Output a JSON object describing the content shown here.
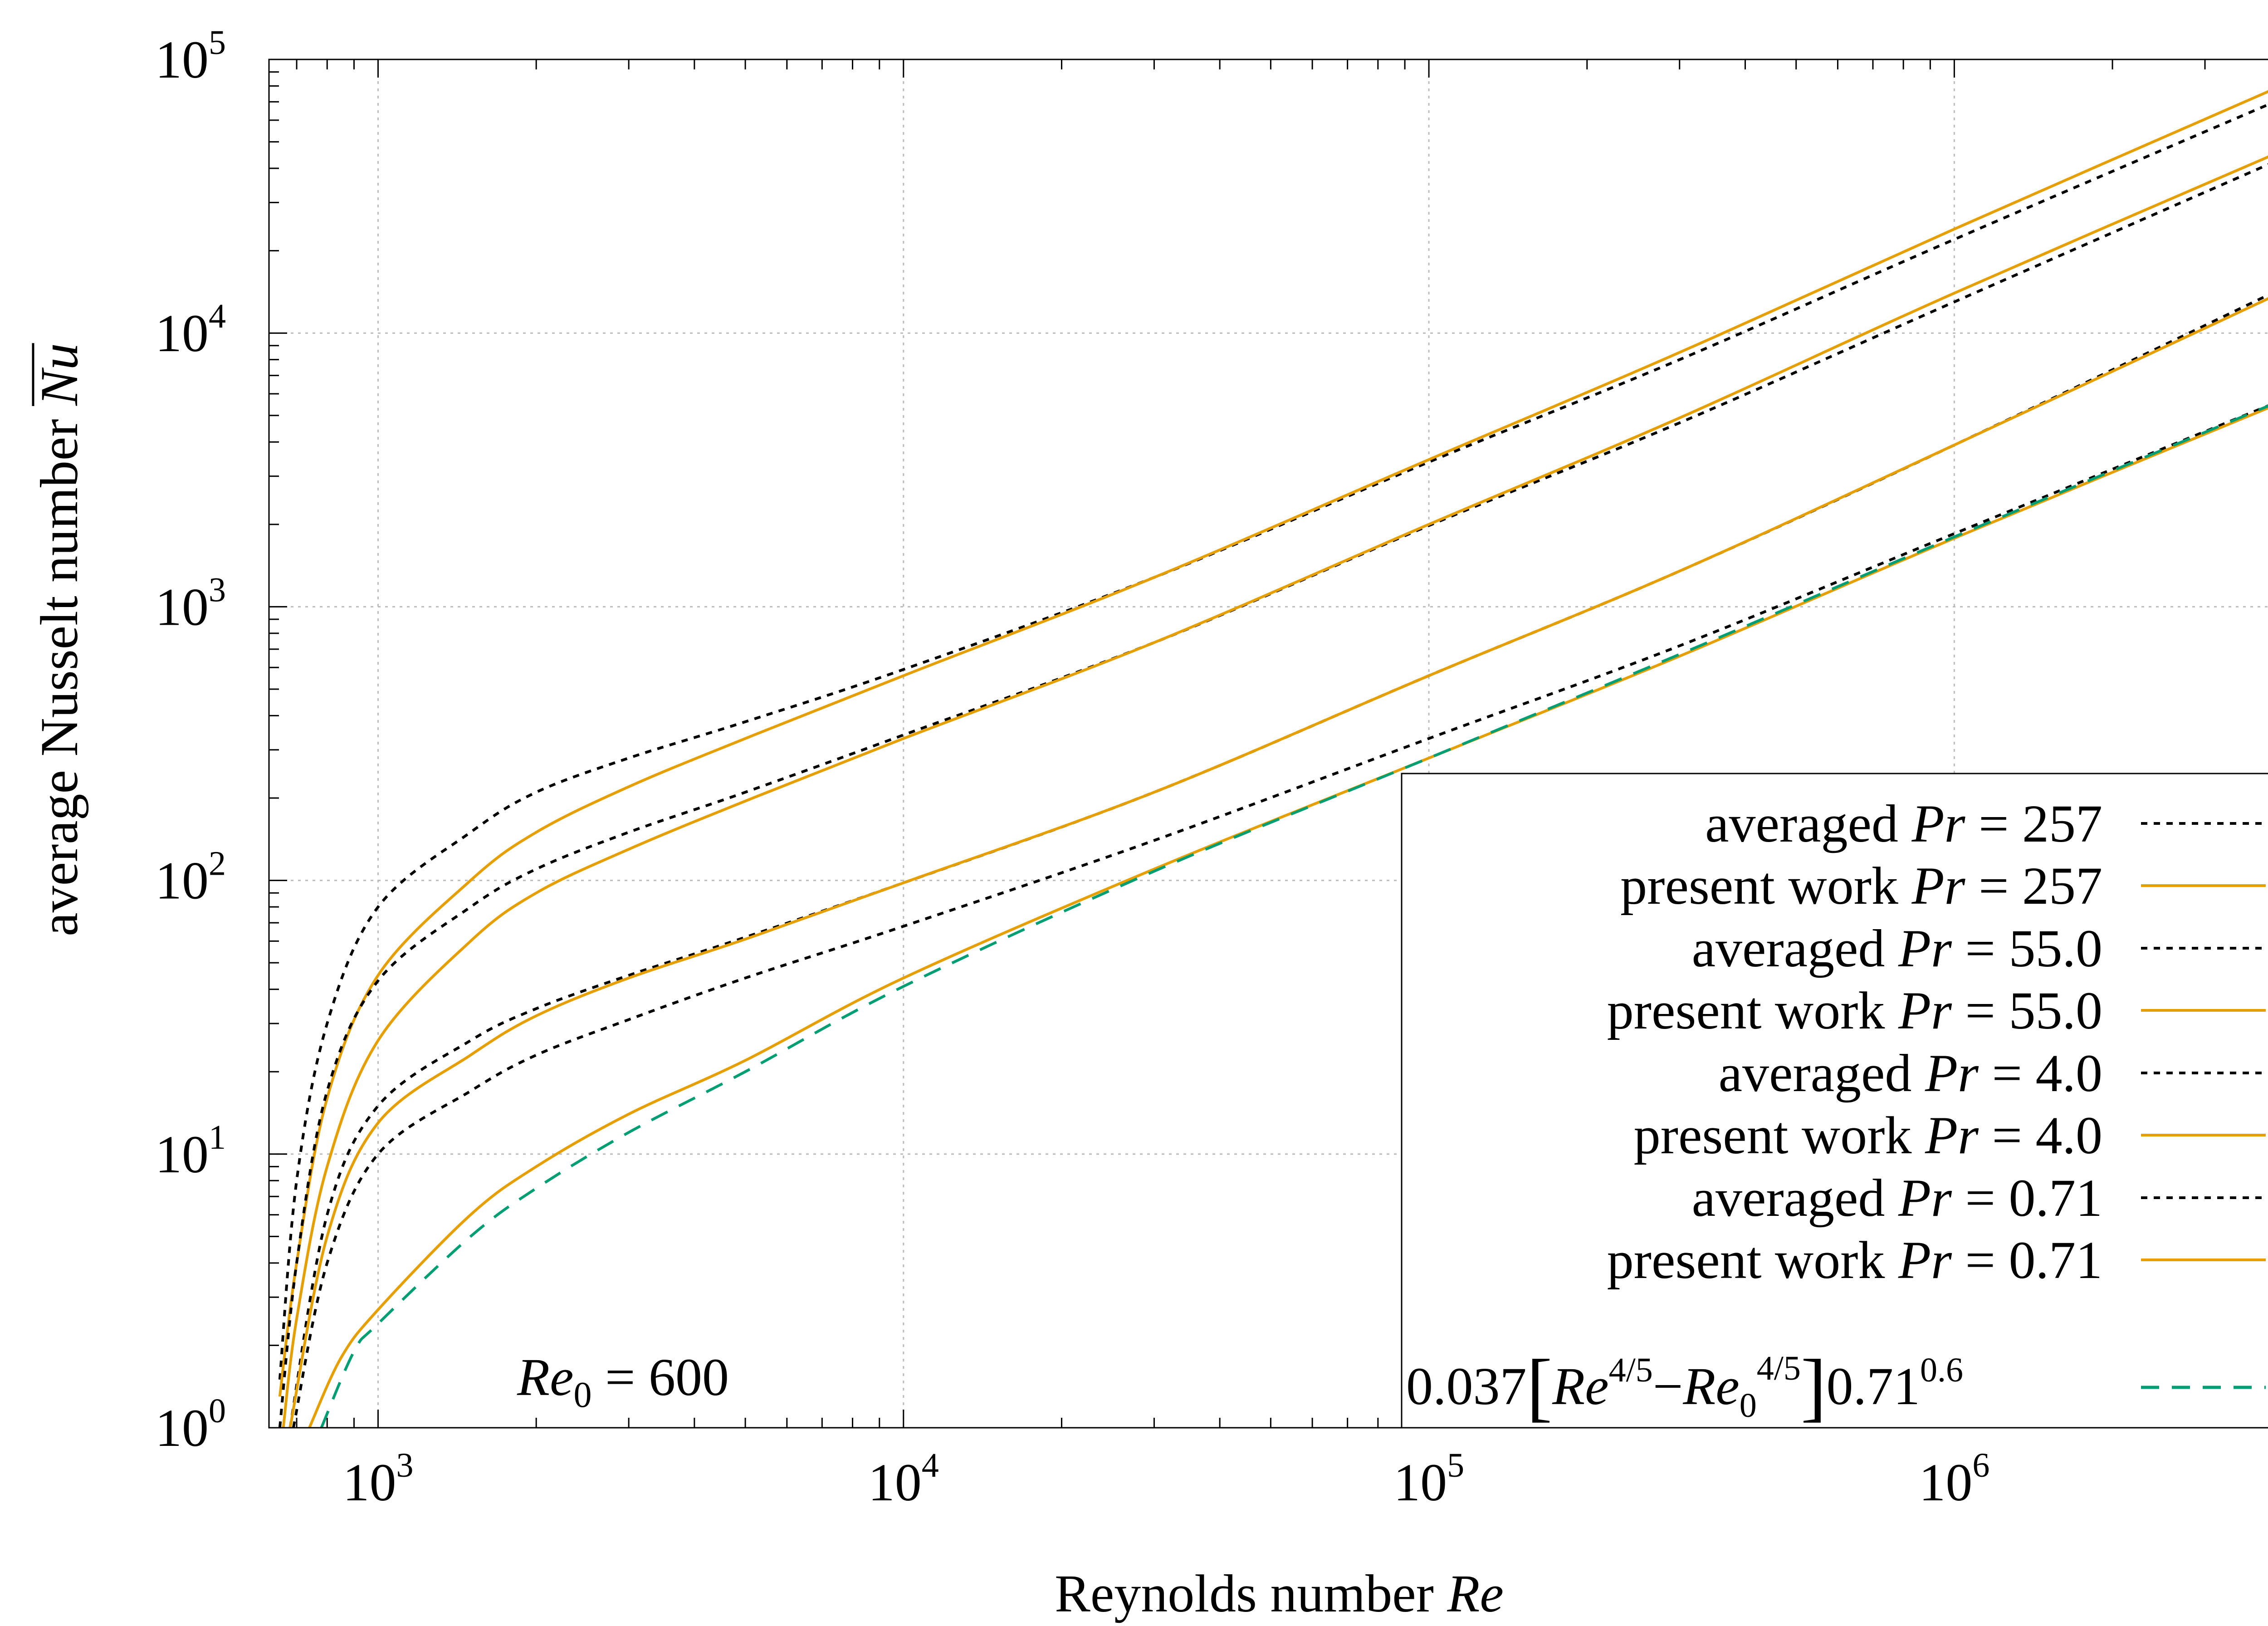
{
  "chart_data": {
    "type": "line",
    "title": "",
    "xlabel": "Reynolds number",
    "xlabel_symbol": "Re",
    "ylabel": "average Nusselt number",
    "ylabel_symbol": "Nu",
    "xscale": "log",
    "yscale": "log",
    "xlim": [
      620,
      4500000
    ],
    "ylim": [
      1,
      100000
    ],
    "grid": true,
    "x_ticks": [
      {
        "base": "10",
        "exp": "3"
      },
      {
        "base": "10",
        "exp": "4"
      },
      {
        "base": "10",
        "exp": "5"
      },
      {
        "base": "10",
        "exp": "6"
      }
    ],
    "y_ticks": [
      {
        "base": "10",
        "exp": "0"
      },
      {
        "base": "10",
        "exp": "1"
      },
      {
        "base": "10",
        "exp": "2"
      },
      {
        "base": "10",
        "exp": "3"
      },
      {
        "base": "10",
        "exp": "4"
      },
      {
        "base": "10",
        "exp": "5"
      }
    ],
    "annotation": {
      "symbol": "Re",
      "subscript": "0",
      "text": " = 600"
    },
    "Re0": 600,
    "series": [
      {
        "name": "averaged",
        "pr_symbol": "Pr",
        "pr_value": "=  257",
        "style": "dotted",
        "color": "#000000",
        "x": [
          650,
          700,
          800,
          1000,
          1500,
          2000,
          3000,
          5000,
          10000,
          30000,
          100000,
          300000,
          1000000,
          4500000
        ],
        "y": [
          1.5,
          8,
          30,
          80,
          150,
          210,
          280,
          380,
          590,
          1280,
          3380,
          8000,
          22000,
          76000
        ]
      },
      {
        "name": "present work",
        "pr_symbol": "Pr",
        "pr_value": "=  257",
        "style": "solid",
        "color": "#E69F00",
        "x": [
          650,
          700,
          800,
          1000,
          1500,
          2000,
          3000,
          5000,
          10000,
          30000,
          100000,
          300000,
          1000000,
          4500000
        ],
        "y": [
          1.3,
          4,
          16,
          45,
          100,
          150,
          220,
          330,
          560,
          1280,
          3450,
          8500,
          24000,
          85000
        ]
      },
      {
        "name": "averaged",
        "pr_symbol": "Pr",
        "pr_value": "= 55.0",
        "style": "dotted",
        "color": "#000000",
        "x": [
          650,
          700,
          800,
          1000,
          1500,
          2000,
          3000,
          5000,
          10000,
          30000,
          100000,
          300000,
          1000000,
          4500000
        ],
        "y": [
          1,
          4,
          17,
          43,
          80,
          110,
          150,
          210,
          340,
          740,
          1980,
          4700,
          13000,
          46000
        ]
      },
      {
        "name": "present work",
        "pr_symbol": "Pr",
        "pr_value": "= 55.0",
        "style": "solid",
        "color": "#E69F00",
        "x": [
          660,
          700,
          800,
          1000,
          1500,
          2000,
          3000,
          5000,
          10000,
          30000,
          100000,
          300000,
          1000000,
          4500000
        ],
        "y": [
          1,
          2.5,
          9,
          26,
          60,
          90,
          130,
          195,
          330,
          740,
          2000,
          4900,
          14000,
          49000
        ]
      },
      {
        "name": "averaged",
        "pr_symbol": "Pr",
        "pr_value": "=   4.0",
        "style": "dotted",
        "color": "#000000",
        "x": [
          680,
          800,
          1000,
          1500,
          2000,
          3000,
          5000,
          10000,
          30000,
          100000,
          300000,
          1000000,
          4500000
        ],
        "y": [
          1,
          6,
          15,
          26,
          34,
          45,
          62,
          98,
          210,
          560,
          1350,
          3900,
          15500
        ]
      },
      {
        "name": "present work",
        "pr_symbol": "Pr",
        "pr_value": "=   4.0",
        "style": "solid",
        "color": "#E69F00",
        "x": [
          680,
          800,
          1000,
          1500,
          2000,
          3000,
          5000,
          10000,
          30000,
          100000,
          300000,
          1000000,
          4500000
        ],
        "y": [
          1,
          5,
          13,
          23,
          32,
          44,
          61,
          98,
          210,
          560,
          1350,
          3900,
          15000
        ]
      },
      {
        "name": "averaged",
        "pr_symbol": "Pr",
        "pr_value": "= 0.71",
        "style": "dotted",
        "color": "#000000",
        "x": [
          690,
          800,
          1000,
          1500,
          2000,
          3000,
          5000,
          10000,
          30000,
          100000,
          300000,
          1000000,
          4500000
        ],
        "y": [
          1,
          4,
          10,
          17,
          23,
          31,
          44,
          68,
          140,
          330,
          720,
          1850,
          6000
        ]
      },
      {
        "name": "present work",
        "pr_symbol": "Pr",
        "pr_value": "= 0.71",
        "style": "solid",
        "color": "#E69F00",
        "x": [
          740,
          850,
          1000,
          1500,
          2000,
          3000,
          5000,
          10000,
          30000,
          100000,
          300000,
          1000000,
          4500000
        ],
        "y": [
          1,
          1.8,
          2.7,
          6,
          9,
          14,
          22,
          44,
          110,
          280,
          660,
          1780,
          5900
        ]
      },
      {
        "name": "0.037[Re^{4/5}−Re_0^{4/5}]0.71^{0.6}",
        "style": "dashed",
        "color": "#009E73",
        "x": [
          780,
          900,
          1000,
          1500,
          2000,
          3000,
          5000,
          10000,
          30000,
          100000,
          300000,
          1000000,
          4500000
        ],
        "y": [
          1,
          1.9,
          2.4,
          5,
          7.5,
          12,
          20,
          41,
          108,
          280,
          670,
          1800,
          6000
        ]
      }
    ],
    "correlation_legend": {
      "coef": "0.037",
      "open": "[",
      "re": "Re",
      "exp": "4/5",
      "minus": "−",
      "re0": "Re",
      "re0_sub": "0",
      "close": "]",
      "pr": "0.71",
      "pr_exp": "0.6"
    },
    "legend_position": "bottom-right"
  }
}
